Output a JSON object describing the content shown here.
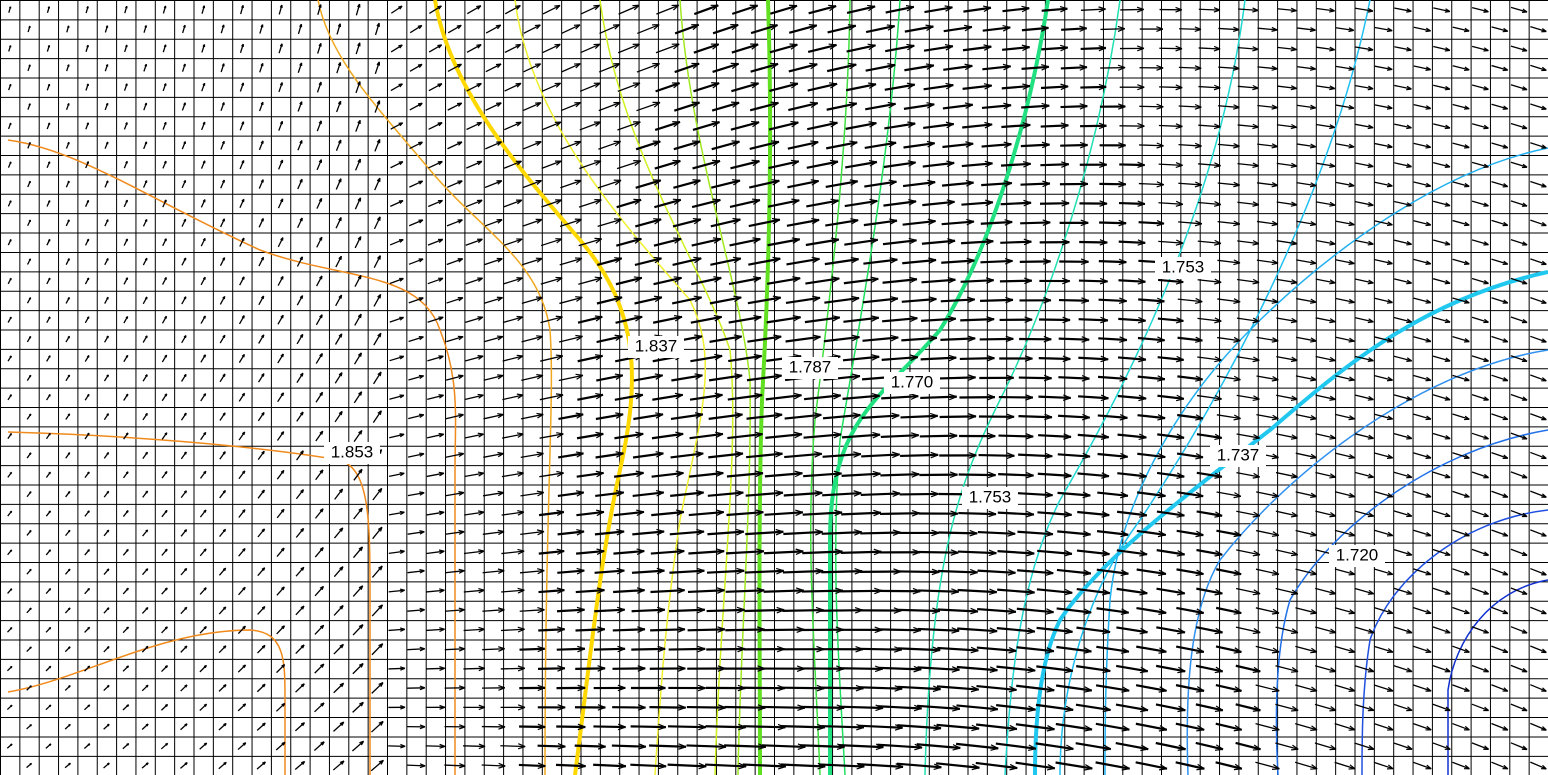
{
  "contour_labels": [
    "1.853",
    "1.837",
    "1.787",
    "1.770",
    "1.753",
    "1.737",
    "1.753",
    "1.720"
  ]
}
